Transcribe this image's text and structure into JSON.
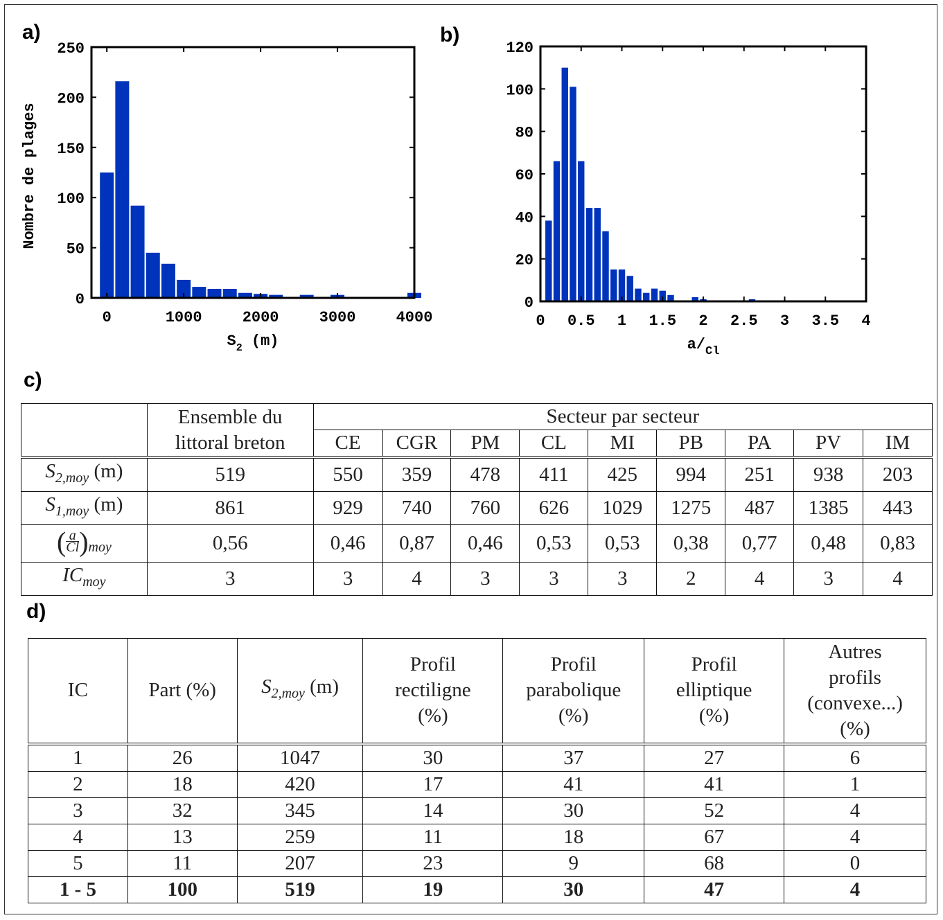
{
  "panels": {
    "a": "a)",
    "b": "b)",
    "c": "c)",
    "d": "d)"
  },
  "chart_data": [
    {
      "id": "a",
      "type": "bar",
      "ylabel": "Nombre de plages",
      "xlabel_main": "S",
      "xlabel_sub": "2",
      "xlabel_unit": "(m)",
      "xlim": [
        -200,
        4000
      ],
      "ylim": [
        0,
        250
      ],
      "xticks": [
        0,
        1000,
        2000,
        3000,
        4000
      ],
      "yticks": [
        0,
        50,
        100,
        150,
        200,
        250
      ],
      "bar_color": "#0033BB",
      "bar_width": 180,
      "bars": [
        {
          "x": 0,
          "y": 125
        },
        {
          "x": 200,
          "y": 216
        },
        {
          "x": 400,
          "y": 92
        },
        {
          "x": 600,
          "y": 45
        },
        {
          "x": 800,
          "y": 34
        },
        {
          "x": 1000,
          "y": 18
        },
        {
          "x": 1200,
          "y": 11
        },
        {
          "x": 1400,
          "y": 9
        },
        {
          "x": 1600,
          "y": 9
        },
        {
          "x": 1800,
          "y": 5
        },
        {
          "x": 2000,
          "y": 4
        },
        {
          "x": 2200,
          "y": 3
        },
        {
          "x": 2600,
          "y": 3
        },
        {
          "x": 3000,
          "y": 3
        },
        {
          "x": 4000,
          "y": 5
        }
      ]
    },
    {
      "id": "b",
      "type": "bar",
      "ylabel": "",
      "xlabel_main": "a/",
      "xlabel_sub": "Cl",
      "xlabel_unit": "",
      "xlim": [
        0,
        4
      ],
      "ylim": [
        0,
        120
      ],
      "xticks": [
        0,
        0.5,
        1,
        1.5,
        2,
        2.5,
        3,
        3.5,
        4
      ],
      "yticks": [
        0,
        20,
        40,
        60,
        80,
        100,
        120
      ],
      "bar_color": "#0033BB",
      "bar_width": 0.08,
      "bars": [
        {
          "x": 0.1,
          "y": 38
        },
        {
          "x": 0.2,
          "y": 66
        },
        {
          "x": 0.3,
          "y": 110
        },
        {
          "x": 0.4,
          "y": 101
        },
        {
          "x": 0.5,
          "y": 66
        },
        {
          "x": 0.6,
          "y": 44
        },
        {
          "x": 0.7,
          "y": 44
        },
        {
          "x": 0.8,
          "y": 33
        },
        {
          "x": 0.9,
          "y": 15
        },
        {
          "x": 1.0,
          "y": 15
        },
        {
          "x": 1.1,
          "y": 12
        },
        {
          "x": 1.2,
          "y": 6
        },
        {
          "x": 1.3,
          "y": 4
        },
        {
          "x": 1.4,
          "y": 6
        },
        {
          "x": 1.5,
          "y": 5
        },
        {
          "x": 1.6,
          "y": 3
        },
        {
          "x": 1.9,
          "y": 2
        },
        {
          "x": 2.0,
          "y": 1
        },
        {
          "x": 2.6,
          "y": 1
        }
      ]
    }
  ],
  "table_c": {
    "header_col1": [
      "Ensemble du",
      "littoral breton"
    ],
    "header_group": "Secteur par secteur",
    "sectors": [
      "CE",
      "CGR",
      "PM",
      "CL",
      "MI",
      "PB",
      "PA",
      "PV",
      "IM"
    ],
    "rows": [
      {
        "label": "S",
        "sub": "2,moy",
        "unit": " (m)",
        "all": "519",
        "values": [
          "550",
          "359",
          "478",
          "411",
          "425",
          "994",
          "251",
          "938",
          "203"
        ]
      },
      {
        "label": "S",
        "sub": "1,moy",
        "unit": " (m)",
        "all": "861",
        "values": [
          "929",
          "740",
          "760",
          "626",
          "1029",
          "1275",
          "487",
          "1385",
          "443"
        ]
      },
      {
        "label": "a",
        "sub": "moy",
        "unit": "C",
        "all": "0,56",
        "values": [
          "0,46",
          "0,87",
          "0,46",
          "0,53",
          "0,53",
          "0,38",
          "0,77",
          "0,48",
          "0,83"
        ]
      },
      {
        "label": "IC",
        "sub": "moy",
        "unit": "",
        "all": "3",
        "values": [
          "3",
          "4",
          "3",
          "3",
          "3",
          "2",
          "4",
          "3",
          "4"
        ]
      }
    ]
  },
  "table_d": {
    "headers": {
      "ic": "IC",
      "part": "Part (%)",
      "s2_label": "S",
      "s2_sub": "2,moy",
      "s2_unit": " (m)",
      "rect": [
        "Profil",
        "rectiligne",
        "(%)"
      ],
      "para": [
        "Profil",
        "parabolique",
        "(%)"
      ],
      "ellip": [
        "Profil",
        "elliptique",
        "(%)"
      ],
      "autres": [
        "Autres",
        "profils",
        "(convexe...)",
        "(%)"
      ]
    },
    "rows": [
      [
        "1",
        "26",
        "1047",
        "30",
        "37",
        "27",
        "6"
      ],
      [
        "2",
        "18",
        "420",
        "17",
        "41",
        "41",
        "1"
      ],
      [
        "3",
        "32",
        "345",
        "14",
        "30",
        "52",
        "4"
      ],
      [
        "4",
        "13",
        "259",
        "11",
        "18",
        "67",
        "4"
      ],
      [
        "5",
        "11",
        "207",
        "23",
        "9",
        "68",
        "0"
      ]
    ],
    "total": [
      "1 - 5",
      "100",
      "519",
      "19",
      "30",
      "47",
      "4"
    ]
  }
}
